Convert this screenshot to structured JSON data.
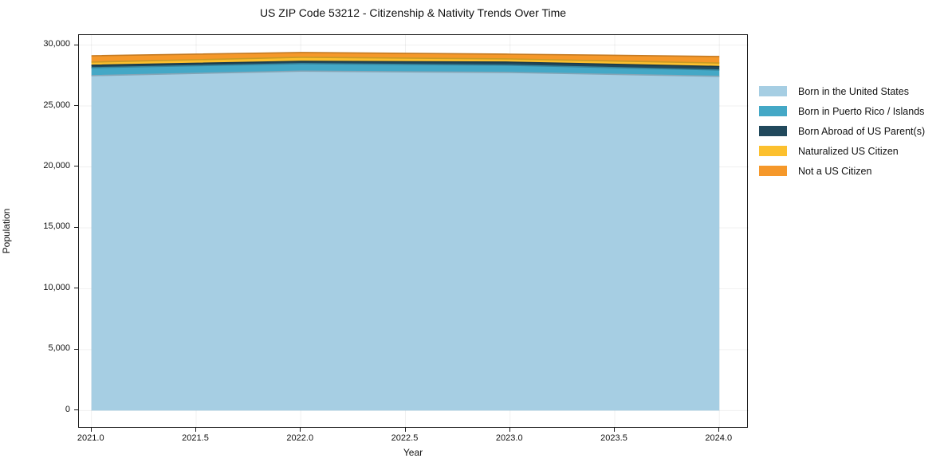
{
  "chart_data": {
    "type": "area",
    "stacked": true,
    "title": "US ZIP Code 53212 - Citizenship & Nativity Trends Over Time",
    "xlabel": "Year",
    "ylabel": "Population",
    "x": [
      2021,
      2022,
      2023,
      2024
    ],
    "series": [
      {
        "name": "Born in the United States",
        "color": "#A6CEE3",
        "values": [
          27490,
          27860,
          27750,
          27430
        ]
      },
      {
        "name": "Born in Puerto Rico / Islands",
        "color": "#44A8C6",
        "values": [
          650,
          610,
          590,
          520
        ]
      },
      {
        "name": "Born Abroad of US Parent(s)",
        "color": "#21495C",
        "values": [
          200,
          195,
          260,
          290
        ]
      },
      {
        "name": "Naturalized US Citizen",
        "color": "#FCC02E",
        "values": [
          260,
          330,
          260,
          280
        ]
      },
      {
        "name": "Not a US Citizen",
        "color": "#F5982A",
        "values": [
          520,
          390,
          390,
          540
        ]
      }
    ],
    "xlim": [
      2020.94,
      2024.14
    ],
    "ylim": [
      -1480,
      30820
    ],
    "xticks": {
      "values": [
        2021.0,
        2021.5,
        2022.0,
        2022.5,
        2023.0,
        2023.5,
        2024.0
      ],
      "labels": [
        "2021.0",
        "2021.5",
        "2022.0",
        "2022.5",
        "2023.0",
        "2023.5",
        "2024.0"
      ]
    },
    "yticks": {
      "values": [
        0,
        5000,
        10000,
        15000,
        20000,
        25000,
        30000
      ],
      "labels": [
        "0",
        "5,000",
        "10,000",
        "15,000",
        "20,000",
        "25,000",
        "30,000"
      ]
    },
    "grid": true,
    "legend_position": "right-outside"
  }
}
